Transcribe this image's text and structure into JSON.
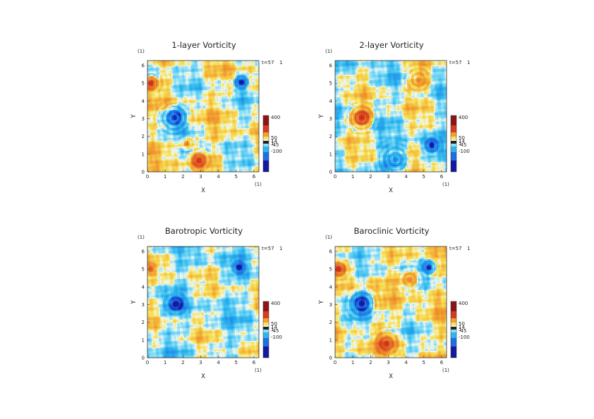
{
  "chart_data": [
    {
      "type": "heatmap",
      "title": "1-layer Vorticity",
      "xlabel": "X",
      "ylabel": "Y",
      "unit": "(1)",
      "xlim": [
        0,
        6.28
      ],
      "ylim": [
        0,
        6.28
      ],
      "x_ticks": [
        "0",
        "1",
        "2",
        "3",
        "4",
        "5",
        "6"
      ],
      "y_ticks": [
        "0",
        "1",
        "2",
        "3",
        "4",
        "5",
        "6"
      ],
      "time_label": "t=57",
      "time_unit": "1",
      "colorbar": {
        "labels": [
          "400",
          "50",
          "14",
          "1",
          "-45",
          "-100"
        ],
        "range": [
          -150,
          400
        ]
      },
      "vortices": [
        {
          "x": 1.5,
          "y": 3.05,
          "strength": -140,
          "radius": 0.55
        },
        {
          "x": 5.3,
          "y": 5.05,
          "strength": -120,
          "radius": 0.35
        },
        {
          "x": 0.2,
          "y": 5.0,
          "strength": 150,
          "radius": 0.35
        },
        {
          "x": 2.9,
          "y": 0.65,
          "strength": 120,
          "radius": 0.45
        },
        {
          "x": 2.2,
          "y": 1.6,
          "strength": 90,
          "radius": 0.3
        }
      ]
    },
    {
      "type": "heatmap",
      "title": "2-layer Vorticity",
      "xlabel": "X",
      "ylabel": "Y",
      "unit": "(1)",
      "xlim": [
        0,
        6.28
      ],
      "ylim": [
        0,
        6.28
      ],
      "x_ticks": [
        "0",
        "1",
        "2",
        "3",
        "4",
        "5",
        "6"
      ],
      "y_ticks": [
        "0",
        "1",
        "2",
        "3",
        "4",
        "5",
        "6"
      ],
      "time_label": "t=57",
      "time_unit": "1",
      "colorbar": {
        "labels": [
          "400",
          "50",
          "14",
          "1",
          "-45",
          "-100"
        ],
        "range": [
          -150,
          400
        ]
      },
      "vortices": [
        {
          "x": 1.5,
          "y": 3.05,
          "strength": 170,
          "radius": 0.5
        },
        {
          "x": 5.45,
          "y": 1.5,
          "strength": -130,
          "radius": 0.35
        },
        {
          "x": 3.4,
          "y": 0.7,
          "strength": -80,
          "radius": 0.7
        },
        {
          "x": 4.7,
          "y": 5.2,
          "strength": 70,
          "radius": 0.6
        }
      ]
    },
    {
      "type": "heatmap",
      "title": "Barotropic Vorticity",
      "xlabel": "X",
      "ylabel": "Y",
      "unit": "(1)",
      "xlim": [
        0,
        6.28
      ],
      "ylim": [
        0,
        6.28
      ],
      "x_ticks": [
        "0",
        "1",
        "2",
        "3",
        "4",
        "5",
        "6"
      ],
      "y_ticks": [
        "0",
        "1",
        "2",
        "3",
        "4",
        "5",
        "6"
      ],
      "time_label": "t=57",
      "time_unit": "1",
      "colorbar": {
        "labels": [
          "400",
          "50",
          "14",
          "1",
          "-45",
          "-100"
        ],
        "range": [
          -150,
          400
        ]
      },
      "vortices": [
        {
          "x": 1.6,
          "y": 3.05,
          "strength": -140,
          "radius": 0.4
        },
        {
          "x": 5.15,
          "y": 5.1,
          "strength": -120,
          "radius": 0.3
        },
        {
          "x": 0.2,
          "y": 5.0,
          "strength": 90,
          "radius": 0.25
        }
      ]
    },
    {
      "type": "heatmap",
      "title": "Baroclinic Vorticity",
      "xlabel": "X",
      "ylabel": "Y",
      "unit": "(1)",
      "xlim": [
        0,
        6.28
      ],
      "ylim": [
        0,
        6.28
      ],
      "x_ticks": [
        "0",
        "1",
        "2",
        "3",
        "4",
        "5",
        "6"
      ],
      "y_ticks": [
        "0",
        "1",
        "2",
        "3",
        "4",
        "5",
        "6"
      ],
      "time_label": "t=57",
      "time_unit": "1",
      "colorbar": {
        "labels": [
          "400",
          "50",
          "14",
          "1",
          "-45",
          "-100"
        ],
        "range": [
          -150,
          400
        ]
      },
      "vortices": [
        {
          "x": 1.5,
          "y": 3.05,
          "strength": -140,
          "radius": 0.55
        },
        {
          "x": 5.3,
          "y": 5.1,
          "strength": -120,
          "radius": 0.35
        },
        {
          "x": 0.2,
          "y": 5.0,
          "strength": 150,
          "radius": 0.35
        },
        {
          "x": 2.9,
          "y": 0.8,
          "strength": 110,
          "radius": 0.5
        },
        {
          "x": 4.2,
          "y": 4.4,
          "strength": 80,
          "radius": 0.5
        }
      ]
    }
  ],
  "colors": {
    "deep_blue": "#1419a0",
    "blue": "#1e6ee6",
    "cyan": "#2cb6ee",
    "light_cyan": "#8ee0f8",
    "pale": "#f4f6f0",
    "yellow": "#f7e35a",
    "orange": "#f2a030",
    "red": "#d63a20",
    "dark_red": "#8c1414"
  }
}
